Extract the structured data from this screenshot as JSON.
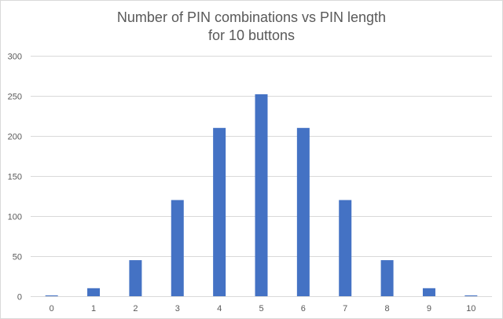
{
  "chart_data": {
    "type": "bar",
    "title_lines": [
      "Number of PIN combinations vs PIN length",
      "for 10 buttons"
    ],
    "categories": [
      "0",
      "1",
      "2",
      "3",
      "4",
      "5",
      "6",
      "7",
      "8",
      "9",
      "10"
    ],
    "values": [
      1,
      10,
      45,
      120,
      210,
      252,
      210,
      120,
      45,
      10,
      1
    ],
    "ylim": [
      0,
      300
    ],
    "yticks": [
      "0",
      "50",
      "100",
      "150",
      "200",
      "250",
      "300"
    ],
    "xlabel": "",
    "ylabel": "",
    "grid": true,
    "legend": "none",
    "bar_color": "#4472c4",
    "grid_color": "#d9d9d9",
    "text_color": "#595959"
  }
}
